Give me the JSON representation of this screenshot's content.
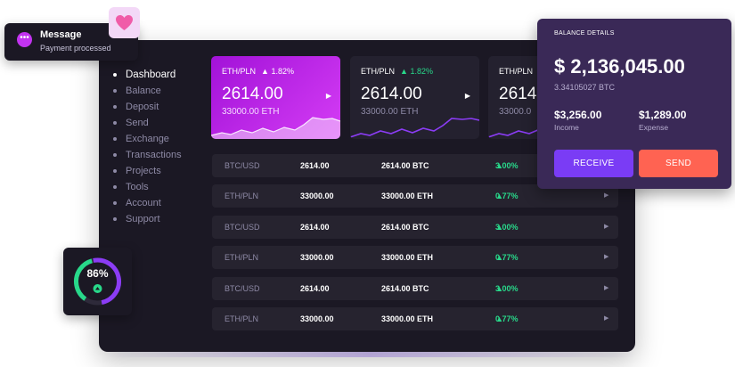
{
  "notification": {
    "title": "Message",
    "body": "Payment processed"
  },
  "nav": [
    "Dashboard",
    "Balance",
    "Deposit",
    "Send",
    "Exchange",
    "Transactions",
    "Projects",
    "Tools",
    "Account",
    "Support"
  ],
  "cards": [
    {
      "pair": "ETH/PLN",
      "change": "1.82%",
      "price": "2614.00",
      "eth": "33000.00 ETH"
    },
    {
      "pair": "ETH/PLN",
      "change": "1.82%",
      "price": "2614.00",
      "eth": "33000.00 ETH"
    },
    {
      "pair": "ETH/PLN",
      "change": "",
      "price": "2614",
      "eth": "33000.0"
    }
  ],
  "rows": [
    {
      "pair": "BTC/USD",
      "v1": "2614.00",
      "v2": "2614.00 BTC",
      "change": "3.00%"
    },
    {
      "pair": "ETH/PLN",
      "v1": "33000.00",
      "v2": "33000.00 ETH",
      "change": "0.77%"
    },
    {
      "pair": "BTC/USD",
      "v1": "2614.00",
      "v2": "2614.00 BTC",
      "change": "3.00%"
    },
    {
      "pair": "ETH/PLN",
      "v1": "33000.00",
      "v2": "33000.00 ETH",
      "change": "0.77%"
    },
    {
      "pair": "BTC/USD",
      "v1": "2614.00",
      "v2": "2614.00 BTC",
      "change": "3.00%"
    },
    {
      "pair": "ETH/PLN",
      "v1": "33000.00",
      "v2": "33000.00 ETH",
      "change": "0.77%"
    }
  ],
  "gauge": {
    "percent": "86%",
    "value": 0.86
  },
  "balance": {
    "title": "BALANCE DETAILS",
    "amount": "$ 2,136,045.00",
    "btc": "3.34105027 BTC",
    "income": "$3,256.00",
    "income_label": "Income",
    "expense": "$1,289.00",
    "expense_label": "Expense",
    "receive_label": "RECEIVE",
    "send_label": "SEND"
  },
  "colors": {
    "accent": "#7a3cf5",
    "send": "#ff6352",
    "up": "#28d88a",
    "card_gradient_start": "#a212d8"
  },
  "icons": [
    "chat-icon",
    "heart-icon",
    "caret-up-icon",
    "chevron-right-icon"
  ]
}
